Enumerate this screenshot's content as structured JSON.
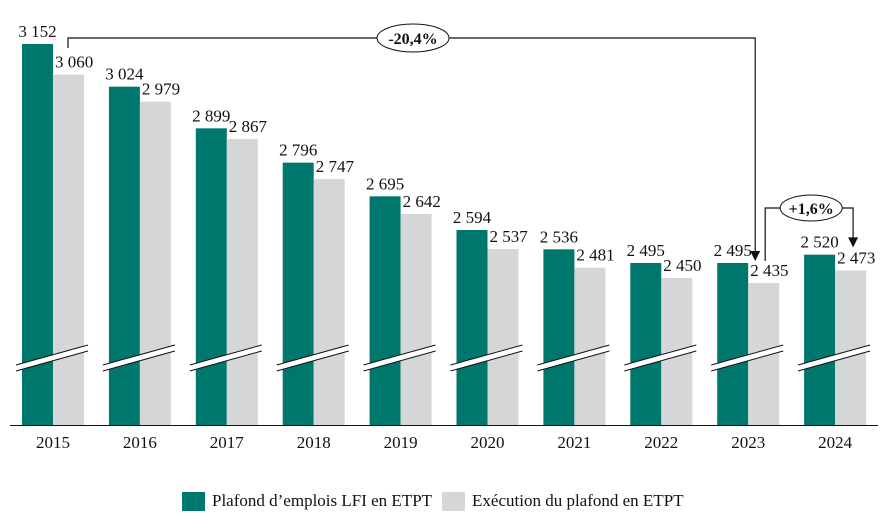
{
  "chart_data": {
    "type": "bar",
    "title": "",
    "xlabel": "",
    "ylabel": "",
    "categories": [
      "2015",
      "2016",
      "2017",
      "2018",
      "2019",
      "2020",
      "2021",
      "2022",
      "2023",
      "2024"
    ],
    "series": [
      {
        "name": "Plafond d’emplois LFI en ETPT",
        "color": "#00776d",
        "values": [
          3152,
          3024,
          2899,
          2796,
          2695,
          2594,
          2536,
          2495,
          2495,
          2520
        ],
        "labels": [
          "3 152",
          "3 024",
          "2 899",
          "2 796",
          "2 695",
          "2 594",
          "2 536",
          "2 495",
          "2 495",
          "2 520"
        ]
      },
      {
        "name": "Exécution du plafond en ETPT",
        "color": "#d5d6d8",
        "values": [
          3060,
          2979,
          2867,
          2747,
          2642,
          2537,
          2481,
          2450,
          2435,
          2473
        ],
        "labels": [
          "3 060",
          "2 979",
          "2 867",
          "2 747",
          "2 642",
          "2 537",
          "2 481",
          "2 450",
          "2 435",
          "2 473"
        ]
      }
    ],
    "axis_break": true,
    "grid": false,
    "legend_position": "bottom",
    "annotations": [
      {
        "text": "-20,4%",
        "from_category": "2015",
        "to_category": "2023",
        "from_series": "Exécution du plafond en ETPT",
        "to_series": "Exécution du plafond en ETPT"
      },
      {
        "text": "+1,6%",
        "from_category": "2023",
        "to_category": "2024",
        "from_series": "Exécution du plafond en ETPT",
        "to_series": "Exécution du plafond en ETPT"
      }
    ]
  },
  "legend": {
    "items": [
      {
        "label": "Plafond d’emplois LFI en ETPT",
        "color": "#00776d"
      },
      {
        "label": "Exécution du plafond en ETPT",
        "color": "#d5d6d8"
      }
    ]
  }
}
